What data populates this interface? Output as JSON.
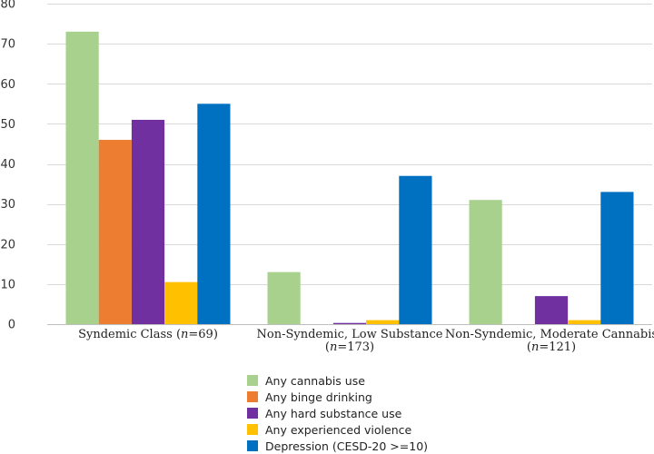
{
  "chart_data": {
    "type": "bar",
    "ylim": [
      0,
      80
    ],
    "yticks": [
      0,
      10,
      20,
      30,
      40,
      50,
      60,
      70,
      80
    ],
    "grid": true,
    "legend_position": "bottom",
    "categories": [
      {
        "label": "Syndemic Class (",
        "n_symbol": "n",
        "n_value": "=69)",
        "line2": ""
      },
      {
        "label": "Non-Syndemic, Low Substance",
        "line2": "(",
        "n_symbol": "n",
        "n_value": "=173)"
      },
      {
        "label": "Non-Syndemic, Moderate Cannabis",
        "line2": "(",
        "n_symbol": "n",
        "n_value": "=121)"
      }
    ],
    "series": [
      {
        "name": "Any cannabis use",
        "color": "#a9d18e",
        "values": [
          73,
          13,
          31
        ]
      },
      {
        "name": "Any binge drinking",
        "color": "#ed7d31",
        "values": [
          46,
          0,
          0
        ]
      },
      {
        "name": "Any hard substance use",
        "color": "#7030a0",
        "values": [
          51,
          0.3,
          7
        ]
      },
      {
        "name": "Any experienced violence",
        "color": "#ffc000",
        "values": [
          10.5,
          1,
          1
        ]
      },
      {
        "name": "Depression (CESD-20 >=10)",
        "color": "#0070c0",
        "values": [
          55,
          37,
          33
        ]
      }
    ]
  }
}
